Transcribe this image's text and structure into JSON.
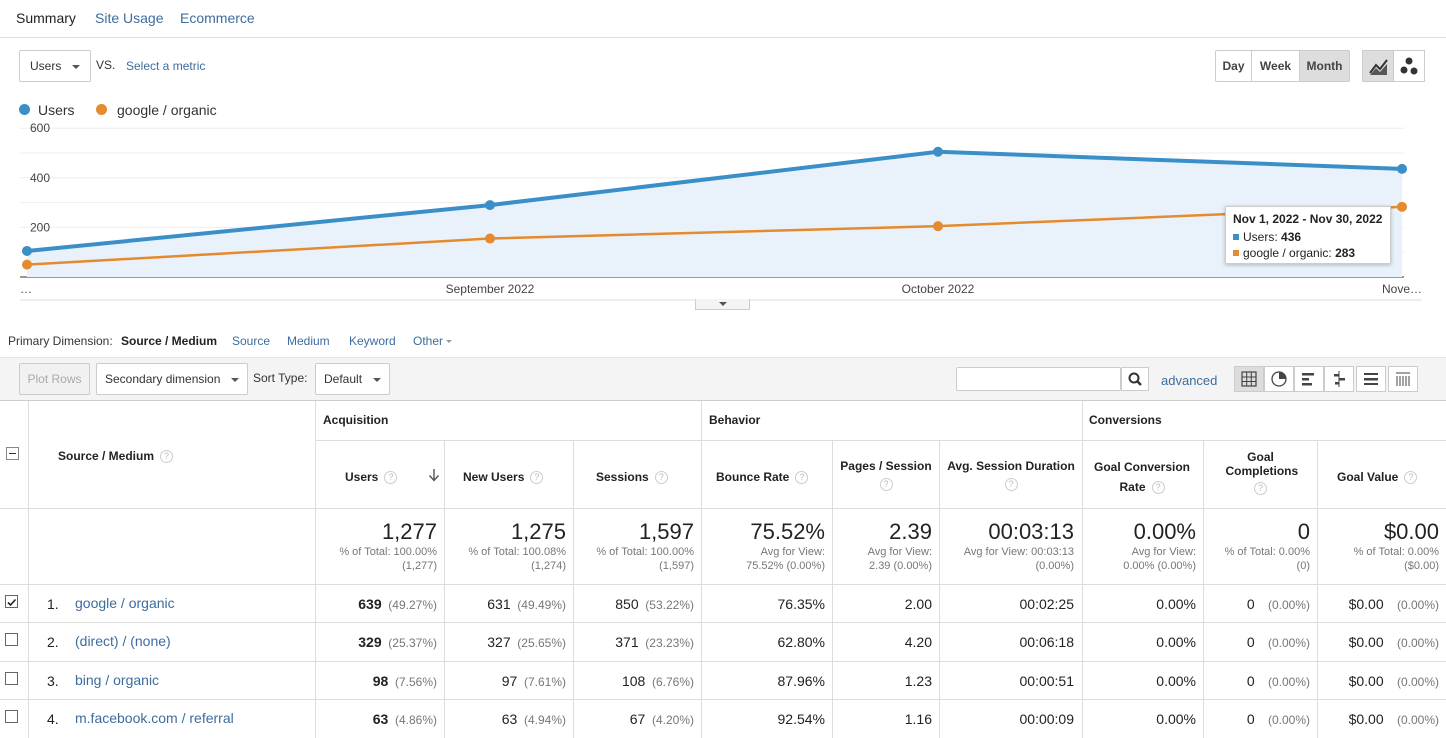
{
  "tabs": [
    "Summary",
    "Site Usage",
    "Ecommerce"
  ],
  "metric_select": {
    "value": "Users",
    "vs": "VS.",
    "select_metric": "Select a metric"
  },
  "periods": [
    "Day",
    "Week",
    "Month"
  ],
  "selected_period": "Month",
  "legend": [
    {
      "label": "Users",
      "color": "#3a8fc8"
    },
    {
      "label": "google / organic",
      "color": "#e68a2e"
    }
  ],
  "chart_data": {
    "type": "line",
    "x": [
      "…",
      "September 2022",
      "October 2022",
      "Nove…"
    ],
    "series": [
      {
        "name": "Users",
        "values": [
          105,
          290,
          505,
          436
        ],
        "color": "#3a8fc8"
      },
      {
        "name": "google / organic",
        "values": [
          50,
          155,
          205,
          283
        ],
        "color": "#e68a2e"
      }
    ],
    "yticks": [
      200,
      400,
      600
    ],
    "ylim": [
      0,
      600
    ],
    "grid": true
  },
  "tooltip": {
    "title": "Nov 1, 2022 - Nov 30, 2022",
    "users_label": "Users:",
    "users_value": "436",
    "organic_label": "google / organic:",
    "organic_value": "283"
  },
  "primary_dimension": {
    "label": "Primary Dimension:",
    "selected": "Source / Medium",
    "options": [
      "Source",
      "Medium",
      "Keyword",
      "Other"
    ]
  },
  "toolbar": {
    "plot_rows": "Plot Rows",
    "secondary_dimension": "Secondary dimension",
    "sort_type_label": "Sort Type:",
    "sort_type_value": "Default",
    "search_placeholder": "",
    "advanced": "advanced"
  },
  "table": {
    "groups": [
      "Acquisition",
      "Behavior",
      "Conversions"
    ],
    "dimension_header": "Source / Medium",
    "columns": [
      "Users",
      "New Users",
      "Sessions",
      "Bounce Rate",
      "Pages / Session",
      "Avg. Session Duration",
      "Goal Conversion Rate",
      "Goal Completions",
      "Goal Value"
    ],
    "totals": [
      {
        "big": "1,277",
        "sub1": "% of Total: 100.00%",
        "sub2": "(1,277)"
      },
      {
        "big": "1,275",
        "sub1": "% of Total: 100.08%",
        "sub2": "(1,274)"
      },
      {
        "big": "1,597",
        "sub1": "% of Total: 100.00%",
        "sub2": "(1,597)"
      },
      {
        "big": "75.52%",
        "sub1": "Avg for View:",
        "sub2": "75.52% (0.00%)"
      },
      {
        "big": "2.39",
        "sub1": "Avg for View:",
        "sub2": "2.39 (0.00%)"
      },
      {
        "big": "00:03:13",
        "sub1": "Avg for View: 00:03:13",
        "sub2": "(0.00%)"
      },
      {
        "big": "0.00%",
        "sub1": "Avg for View:",
        "sub2": "0.00% (0.00%)"
      },
      {
        "big": "0",
        "sub1": "% of Total: 0.00%",
        "sub2": "(0)"
      },
      {
        "big": "$0.00",
        "sub1": "% of Total: 0.00%",
        "sub2": "($0.00)"
      }
    ],
    "rows": [
      {
        "idx": "1.",
        "name": "google / organic",
        "checked": true,
        "users": "639",
        "users_pct": "(49.27%)",
        "new": "631",
        "new_pct": "(49.49%)",
        "sessions": "850",
        "sessions_pct": "(53.22%)",
        "bounce": "76.35%",
        "pages": "2.00",
        "duration": "00:02:25",
        "conv": "0.00%",
        "comp": "0",
        "comp_pct": "(0.00%)",
        "value": "$0.00",
        "value_pct": "(0.00%)"
      },
      {
        "idx": "2.",
        "name": "(direct) / (none)",
        "checked": false,
        "users": "329",
        "users_pct": "(25.37%)",
        "new": "327",
        "new_pct": "(25.65%)",
        "sessions": "371",
        "sessions_pct": "(23.23%)",
        "bounce": "62.80%",
        "pages": "4.20",
        "duration": "00:06:18",
        "conv": "0.00%",
        "comp": "0",
        "comp_pct": "(0.00%)",
        "value": "$0.00",
        "value_pct": "(0.00%)"
      },
      {
        "idx": "3.",
        "name": "bing / organic",
        "checked": false,
        "users": "98",
        "users_pct": "(7.56%)",
        "new": "97",
        "new_pct": "(7.61%)",
        "sessions": "108",
        "sessions_pct": "(6.76%)",
        "bounce": "87.96%",
        "pages": "1.23",
        "duration": "00:00:51",
        "conv": "0.00%",
        "comp": "0",
        "comp_pct": "(0.00%)",
        "value": "$0.00",
        "value_pct": "(0.00%)"
      },
      {
        "idx": "4.",
        "name": "m.facebook.com / referral",
        "checked": false,
        "users": "63",
        "users_pct": "(4.86%)",
        "new": "63",
        "new_pct": "(4.94%)",
        "sessions": "67",
        "sessions_pct": "(4.20%)",
        "bounce": "92.54%",
        "pages": "1.16",
        "duration": "00:00:09",
        "conv": "0.00%",
        "comp": "0",
        "comp_pct": "(0.00%)",
        "value": "$0.00",
        "value_pct": "(0.00%)"
      }
    ]
  }
}
